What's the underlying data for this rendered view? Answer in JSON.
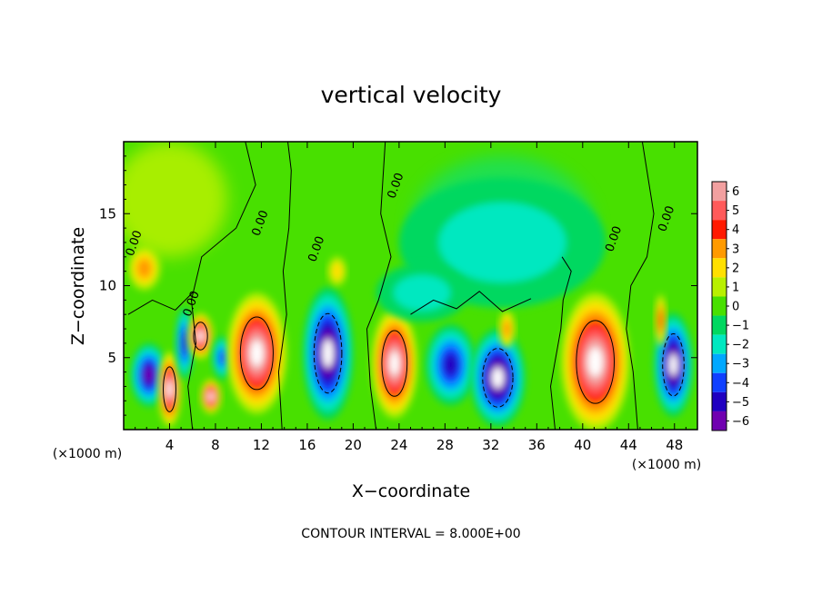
{
  "chart_data": {
    "type": "heatmap",
    "title": "vertical velocity",
    "xlabel": "X−coordinate",
    "ylabel": "Z−coordinate",
    "x_scale_note": "(×1000 m)",
    "z_scale_note": "(×1000 m)",
    "footer": "CONTOUR INTERVAL = 8.000E+00",
    "xlim": [
      0,
      50
    ],
    "ylim": [
      0,
      20
    ],
    "x_ticks": [
      4,
      8,
      12,
      16,
      20,
      24,
      28,
      32,
      36,
      40,
      44,
      48
    ],
    "x_tick_labels": [
      "4",
      "8",
      "12",
      "16",
      "20",
      "24",
      "28",
      "32",
      "36",
      "40",
      "44",
      "48"
    ],
    "y_ticks": [
      5,
      10,
      15
    ],
    "y_tick_labels": [
      "5",
      "10",
      "15"
    ],
    "colorbar_levels": [
      "6",
      "5",
      "4",
      "3",
      "2",
      "1",
      "0",
      "−1",
      "−2",
      "−3",
      "−4",
      "−5",
      "−6"
    ],
    "colorbar_colors": [
      "#f2a0a0",
      "#ff5a5a",
      "#ff1a00",
      "#ff9a00",
      "#ffe000",
      "#b8f000",
      "#48e000",
      "#00d860",
      "#00e8c0",
      "#00a8ff",
      "#1040ff",
      "#2000c0",
      "#7000b0"
    ],
    "contour_labels": [
      "0.00",
      "0.00",
      "0.00",
      "0.00",
      "0.00",
      "0.00",
      "0.00"
    ],
    "cells": [
      {
        "x": 2.2,
        "z": 3.8,
        "rx": 1.6,
        "rz": 2.2,
        "w": -6
      },
      {
        "x": 4.0,
        "z": 2.8,
        "rx": 1.0,
        "rz": 2.6,
        "w": 8
      },
      {
        "x": 5.3,
        "z": 6.0,
        "rx": 0.8,
        "rz": 2.5,
        "w": -5
      },
      {
        "x": 6.7,
        "z": 6.5,
        "rx": 1.1,
        "rz": 1.6,
        "w": 8
      },
      {
        "x": 7.6,
        "z": 2.3,
        "rx": 0.9,
        "rz": 1.2,
        "w": 7
      },
      {
        "x": 8.6,
        "z": 5.0,
        "rx": 0.9,
        "rz": 1.5,
        "w": -4
      },
      {
        "x": 11.6,
        "z": 5.3,
        "rx": 2.6,
        "rz": 4.2,
        "w": 10
      },
      {
        "x": 17.8,
        "z": 5.3,
        "rx": 2.2,
        "rz": 4.6,
        "w": -10
      },
      {
        "x": 23.6,
        "z": 4.6,
        "rx": 2.0,
        "rz": 3.8,
        "w": 9
      },
      {
        "x": 28.5,
        "z": 4.5,
        "rx": 2.2,
        "rz": 2.8,
        "w": -5
      },
      {
        "x": 32.6,
        "z": 3.6,
        "rx": 2.4,
        "rz": 3.4,
        "w": -10
      },
      {
        "x": 33.4,
        "z": 7.0,
        "rx": 0.7,
        "rz": 1.3,
        "w": 2.5
      },
      {
        "x": 41.1,
        "z": 4.7,
        "rx": 3.0,
        "rz": 4.8,
        "w": 10
      },
      {
        "x": 47.9,
        "z": 4.5,
        "rx": 1.7,
        "rz": 3.6,
        "w": -9
      },
      {
        "x": 46.8,
        "z": 7.6,
        "rx": 0.5,
        "rz": 1.8,
        "w": 4
      },
      {
        "x": 1.8,
        "z": 11.2,
        "rx": 1.4,
        "rz": 1.5,
        "w": 3
      },
      {
        "x": 18.6,
        "z": 11.0,
        "rx": 0.8,
        "rz": 1.0,
        "w": 2
      },
      {
        "x": 33.0,
        "z": 13.0,
        "rx": 9.0,
        "rz": 4.5,
        "w": -1.5
      },
      {
        "x": 26.0,
        "z": 9.5,
        "rx": 4.0,
        "rz": 2.0,
        "w": -1.2
      }
    ]
  }
}
